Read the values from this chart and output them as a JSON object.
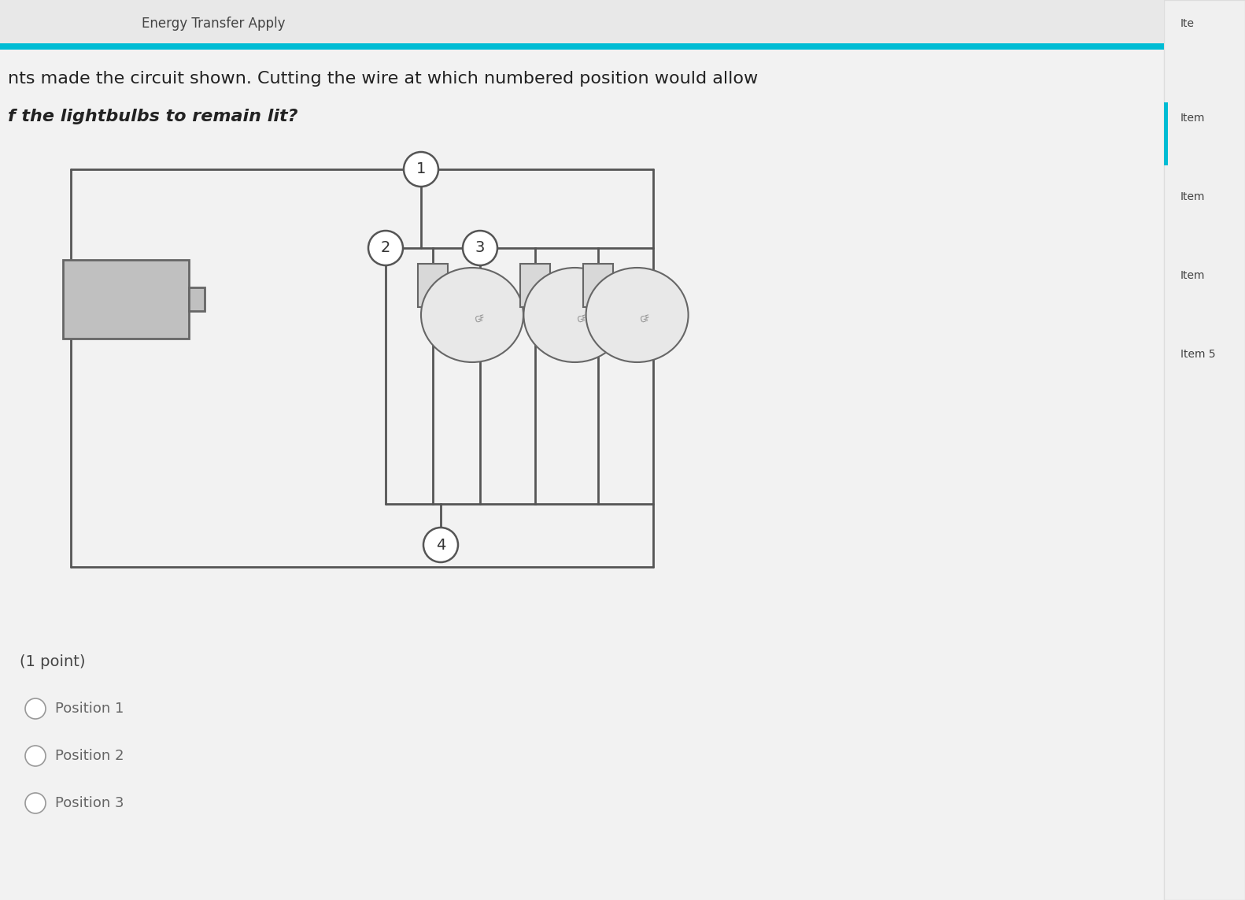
{
  "bg_color": "#e8e8e8",
  "main_bg": "#f0f0f0",
  "header_bg": "#e8e8e8",
  "header_text": "Energy Transfer Apply",
  "teal_bar_color": "#00bcd4",
  "question_line1": "nts made the circuit shown. Cutting the wire at which numbered position would allow",
  "question_line2": "f the lightbulbs to remain lit?",
  "right_panel_items": [
    "Ite",
    "Item",
    "Item",
    "Item",
    "Item 5"
  ],
  "point_text": "(1 point)",
  "options": [
    "Position 1",
    "Position 2",
    "Position 3"
  ],
  "wire_color": "#555555",
  "wire_lw": 2.0,
  "title_fontsize": 13,
  "question_fontsize": 15,
  "option_fontsize": 12,
  "circuit_bg": "#f5f5f5"
}
